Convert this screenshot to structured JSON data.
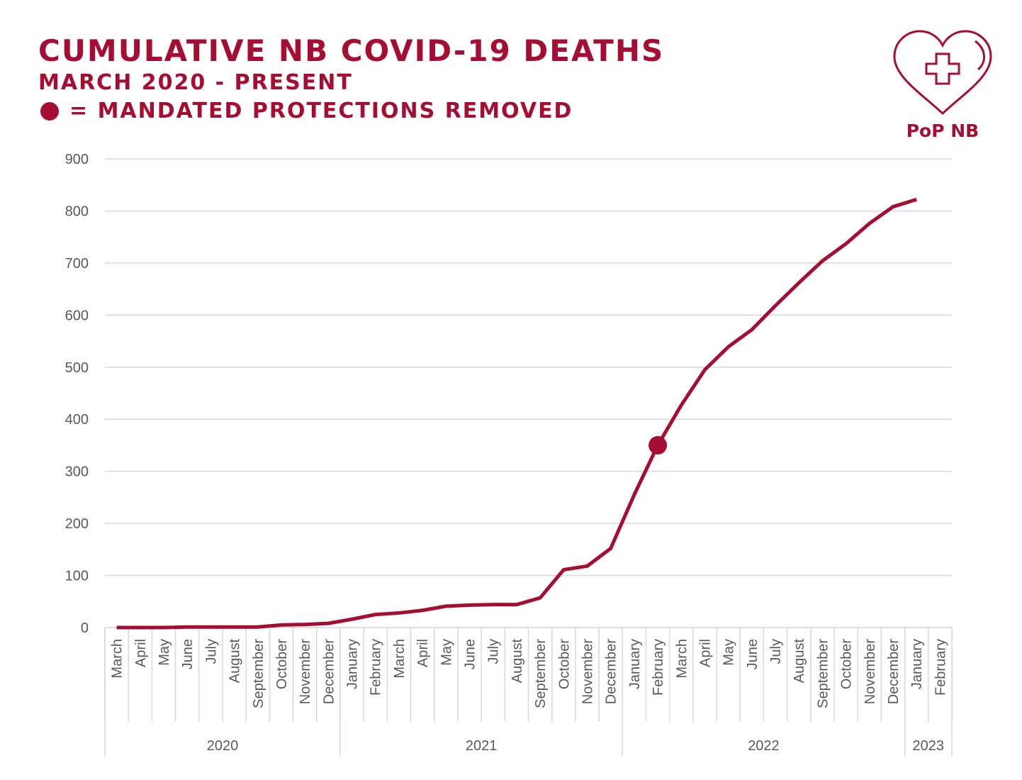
{
  "chart_data": {
    "type": "line",
    "title": "CUMULATIVE NB COVID-19 DEATHS",
    "subtitle": "MARCH 2020 - PRESENT",
    "annotation": "= MANDATED PROTECTIONS REMOVED",
    "logo_text": "PoP NB",
    "categories": [
      "March",
      "April",
      "May",
      "June",
      "July",
      "August",
      "September",
      "October",
      "November",
      "December",
      "January",
      "February",
      "March",
      "April",
      "May",
      "June",
      "July",
      "August",
      "September",
      "October",
      "November",
      "December",
      "January",
      "February",
      "March",
      "April",
      "May",
      "June",
      "July",
      "August",
      "September",
      "October",
      "November",
      "December",
      "January",
      "February"
    ],
    "groups": [
      {
        "label": "2020",
        "count": 10
      },
      {
        "label": "2021",
        "count": 12
      },
      {
        "label": "2022",
        "count": 12
      },
      {
        "label": "2023",
        "count": 2
      }
    ],
    "series": [
      {
        "name": "Cumulative deaths",
        "color": "#a50d33",
        "values": [
          0,
          0,
          0,
          1,
          1,
          1,
          1,
          5,
          6,
          8,
          16,
          25,
          28,
          33,
          41,
          43,
          44,
          44,
          57,
          111,
          118,
          152,
          255,
          350,
          427,
          495,
          539,
          572,
          618,
          662,
          704,
          737,
          776,
          808,
          822,
          null
        ]
      }
    ],
    "highlight_index": 23,
    "ylim": [
      0,
      900
    ],
    "yticks": [
      0,
      100,
      200,
      300,
      400,
      500,
      600,
      700,
      800,
      900
    ],
    "grid": true
  }
}
